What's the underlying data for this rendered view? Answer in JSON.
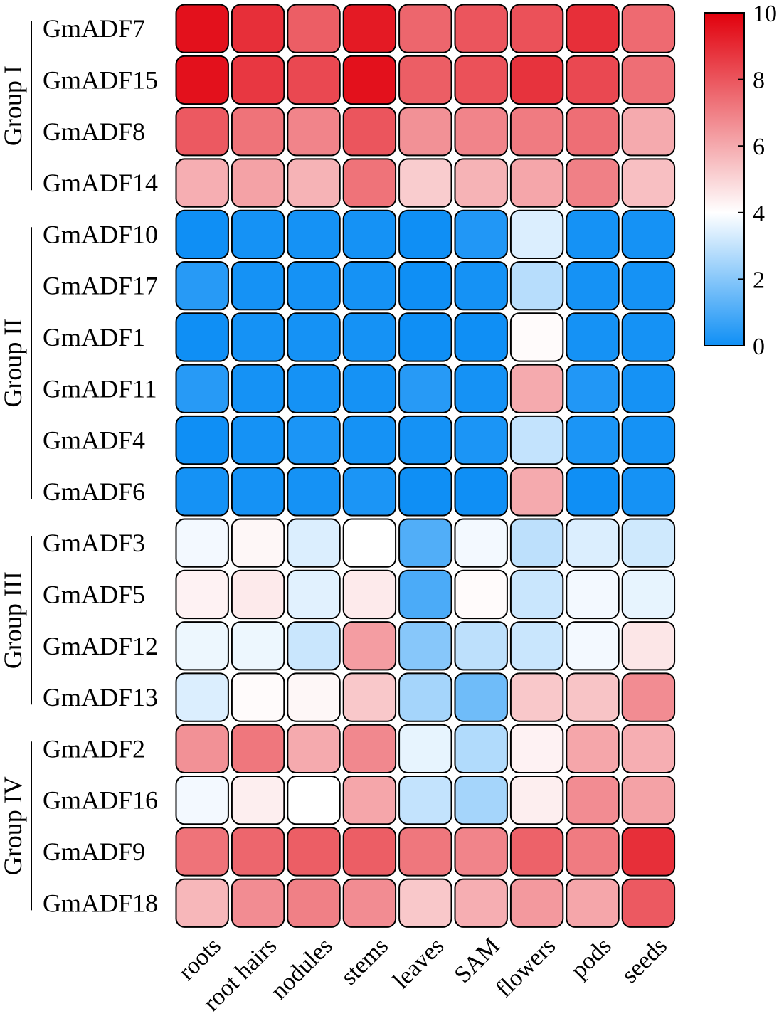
{
  "chart_data": {
    "type": "heatmap",
    "title": "",
    "xlabel": "",
    "ylabel": "",
    "columns": [
      "roots",
      "root hairs",
      "nodules",
      "stems",
      "leaves",
      "SAM",
      "flowers",
      "pods",
      "seeds"
    ],
    "rows": [
      "GmADF7",
      "GmADF15",
      "GmADF8",
      "GmADF14",
      "GmADF10",
      "GmADF17",
      "GmADF1",
      "GmADF11",
      "GmADF4",
      "GmADF6",
      "GmADF3",
      "GmADF5",
      "GmADF12",
      "GmADF13",
      "GmADF2",
      "GmADF16",
      "GmADF9",
      "GmADF18"
    ],
    "groups": [
      {
        "label": "Group I",
        "rows": [
          "GmADF7",
          "GmADF15",
          "GmADF8",
          "GmADF14"
        ]
      },
      {
        "label": "Group II",
        "rows": [
          "GmADF10",
          "GmADF17",
          "GmADF1",
          "GmADF11",
          "GmADF4",
          "GmADF6"
        ]
      },
      {
        "label": "Group III",
        "rows": [
          "GmADF3",
          "GmADF5",
          "GmADF12",
          "GmADF13"
        ]
      },
      {
        "label": "Group IV",
        "rows": [
          "GmADF2",
          "GmADF16",
          "GmADF9",
          "GmADF18"
        ]
      }
    ],
    "values": [
      [
        9.6,
        8.9,
        7.8,
        9.4,
        7.6,
        8.0,
        8.1,
        8.9,
        7.5
      ],
      [
        9.6,
        8.7,
        8.3,
        9.6,
        7.8,
        8.1,
        8.8,
        8.3,
        7.4
      ],
      [
        7.9,
        7.3,
        6.9,
        8.0,
        6.6,
        6.9,
        7.1,
        7.4,
        6.0
      ],
      [
        5.9,
        6.2,
        5.8,
        7.3,
        5.2,
        5.8,
        6.1,
        7.0,
        5.5
      ],
      [
        0.0,
        0.1,
        0.1,
        0.1,
        0.0,
        0.3,
        3.4,
        0.1,
        0.1
      ],
      [
        0.4,
        0.1,
        0.1,
        0.1,
        0.0,
        0.1,
        2.8,
        0.1,
        0.1
      ],
      [
        0.0,
        0.1,
        0.1,
        0.1,
        0.0,
        0.0,
        4.1,
        0.1,
        0.1
      ],
      [
        0.4,
        0.1,
        0.1,
        0.1,
        0.4,
        0.1,
        6.0,
        0.3,
        0.1
      ],
      [
        0.0,
        0.1,
        0.2,
        0.1,
        0.1,
        0.2,
        3.0,
        0.2,
        0.1
      ],
      [
        0.1,
        0.1,
        0.1,
        0.2,
        0.0,
        0.0,
        6.0,
        0.0,
        0.1
      ],
      [
        3.8,
        4.2,
        3.4,
        4.0,
        1.1,
        3.8,
        2.9,
        3.4,
        3.2
      ],
      [
        4.3,
        4.5,
        3.5,
        4.5,
        1.0,
        4.1,
        3.1,
        3.8,
        3.6
      ],
      [
        3.7,
        3.7,
        3.1,
        6.3,
        2.0,
        2.9,
        3.1,
        3.8,
        4.6
      ],
      [
        3.4,
        4.1,
        4.2,
        5.3,
        2.5,
        1.6,
        5.3,
        5.4,
        6.7
      ],
      [
        6.6,
        7.2,
        6.0,
        6.8,
        3.6,
        2.7,
        4.3,
        6.1,
        5.9
      ],
      [
        3.8,
        4.4,
        4.0,
        6.1,
        3.0,
        2.5,
        4.4,
        6.7,
        6.2
      ],
      [
        7.3,
        7.6,
        7.8,
        7.8,
        7.2,
        6.9,
        7.7,
        7.1,
        8.9
      ],
      [
        5.7,
        6.7,
        7.0,
        6.7,
        5.3,
        5.9,
        6.4,
        6.1,
        7.9
      ]
    ],
    "colorbar": {
      "min": 0,
      "max": 10,
      "ticks": [
        0,
        2,
        4,
        6,
        8,
        10
      ],
      "stops": [
        {
          "value": 0,
          "color": "#0f8ff5"
        },
        {
          "value": 4,
          "color": "#ffffff"
        },
        {
          "value": 10,
          "color": "#e1000c"
        }
      ]
    }
  }
}
